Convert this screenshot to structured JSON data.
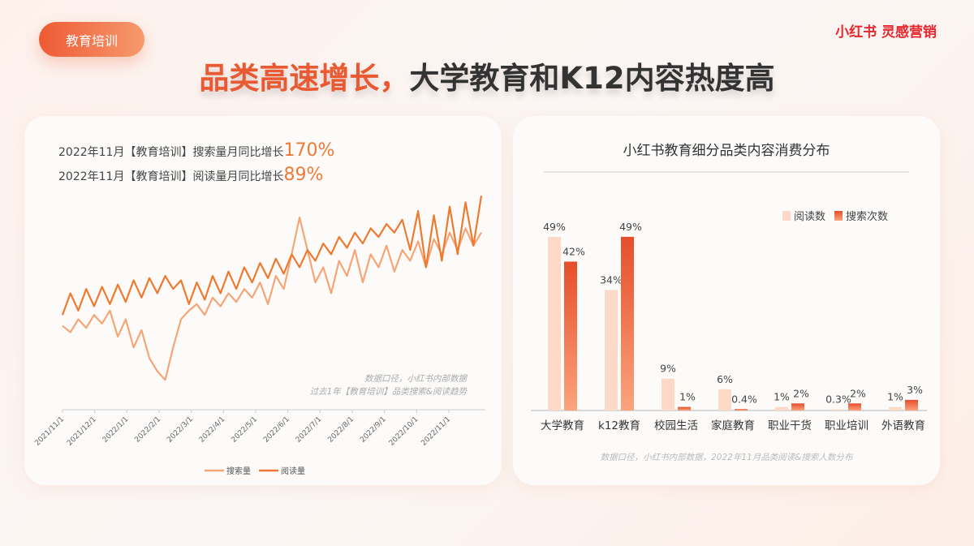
{
  "header": {
    "tag": "教育培训",
    "logo": "小红书 灵感营销",
    "title_highlight": "品类高速增长，",
    "title_rest": "大学教育和K12内容热度高"
  },
  "left_card": {
    "stats": [
      {
        "label": "2022年11月【教育培训】搜索量月同比增长",
        "value": "170%"
      },
      {
        "label": "2022年11月【教育培训】阅读量月同比增长",
        "value": "89%"
      }
    ]
  },
  "colors": {
    "accent": "#ea5a32",
    "search_line": "#f6a577",
    "read_line": "#ee7a30",
    "bar_read": "#fdd9c8",
    "bar_search_top": "#e64e2a",
    "bar_search_bottom": "#fba47d"
  },
  "chart_data": [
    {
      "type": "line",
      "source_note": [
        "数据口径，小红书内部数据",
        "过去1年【教育培训】品类搜索&阅读趋势"
      ],
      "x_ticks": [
        "2021/11/1",
        "2021/12/1",
        "2022/1/1",
        "2022/2/1",
        "2022/3/1",
        "2022/4/1",
        "2022/5/1",
        "2022/6/1",
        "2022/7/1",
        "2022/8/1",
        "2022/9/1",
        "2022/10/1",
        "2022/11/1"
      ],
      "legend_position": "bottom",
      "series": [
        {
          "name": "搜索量",
          "values": [
            35,
            32,
            38,
            34,
            40,
            36,
            42,
            30,
            38,
            25,
            33,
            20,
            14,
            10,
            25,
            38,
            42,
            45,
            40,
            48,
            44,
            50,
            46,
            52,
            48,
            55,
            45,
            58,
            52,
            68,
            85,
            70,
            55,
            62,
            50,
            65,
            58,
            70,
            55,
            68,
            62,
            72,
            60,
            70,
            65,
            74,
            62,
            75,
            68,
            78,
            70,
            80,
            72,
            78
          ]
        },
        {
          "name": "阅读量",
          "values": [
            40,
            50,
            42,
            52,
            44,
            53,
            45,
            54,
            46,
            56,
            48,
            57,
            50,
            58,
            52,
            56,
            45,
            55,
            47,
            58,
            50,
            60,
            52,
            62,
            55,
            64,
            57,
            66,
            59,
            68,
            62,
            70,
            65,
            73,
            68,
            76,
            71,
            78,
            73,
            80,
            76,
            82,
            78,
            84,
            70,
            88,
            62,
            86,
            65,
            90,
            68,
            92,
            72,
            95
          ]
        }
      ]
    },
    {
      "type": "bar",
      "title": "小红书教育细分品类内容消费分布",
      "categories": [
        "大学教育",
        "k12教育",
        "校园生活",
        "家庭教育",
        "职业干货",
        "职业培训",
        "外语教育"
      ],
      "series": [
        {
          "name": "阅读数",
          "values": [
            49,
            34,
            9,
            6,
            1,
            0.3,
            1
          ],
          "labels": [
            "49%",
            "34%",
            "9%",
            "6%",
            "1%",
            "0.3%",
            "1%"
          ]
        },
        {
          "name": "搜索次数",
          "values": [
            42,
            49,
            1,
            0.4,
            2,
            2,
            3
          ],
          "labels": [
            "42%",
            "49%",
            "1%",
            "0.4%",
            "2%",
            "2%",
            "3%"
          ]
        }
      ],
      "legend_position": "top-right",
      "ylim": [
        0,
        50
      ],
      "source_note": "数据口径，小红书内部数据，2022年11月品类阅读&搜索人数分布"
    }
  ]
}
